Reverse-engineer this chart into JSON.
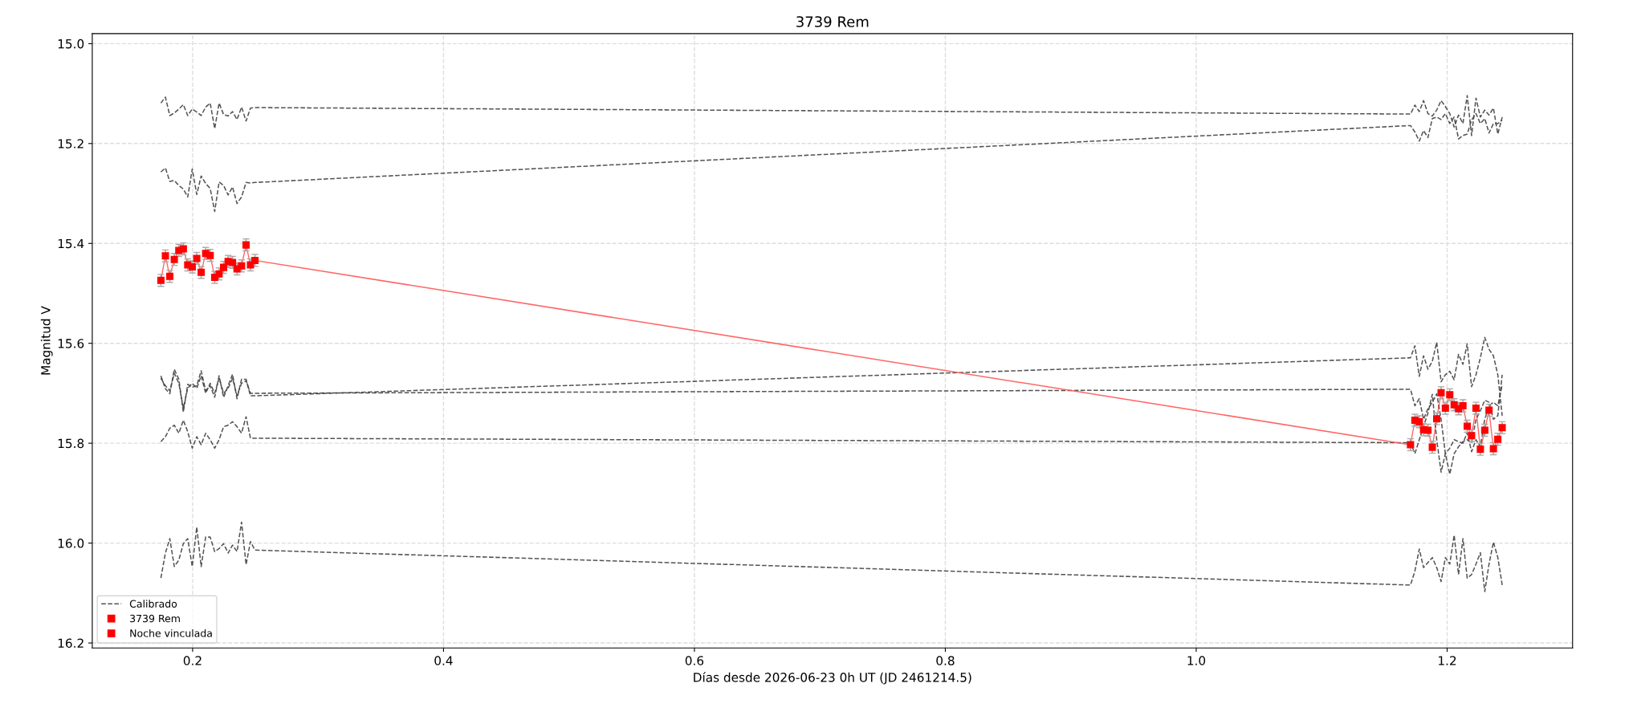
{
  "chart_data": {
    "type": "line",
    "title": "3739 Rem",
    "xlabel": "Días desde 2026-06-23 0h UT (JD 2461214.5)",
    "ylabel": "Magnitud V",
    "x": [
      0.1747,
      0.1783,
      0.1818,
      0.1854,
      0.189,
      0.1926,
      0.1961,
      0.1997,
      0.2033,
      0.2068,
      0.2104,
      0.214,
      0.2176,
      0.2211,
      0.2247,
      0.2283,
      0.2318,
      0.2354,
      0.239,
      0.2426,
      0.2461,
      0.2497,
      1.1708,
      1.1743,
      1.1778,
      1.1812,
      1.1847,
      1.1882,
      1.1917,
      1.1952,
      1.1986,
      1.2021,
      1.2056,
      1.2091,
      1.2126,
      1.216,
      1.2195,
      1.223,
      1.2265,
      1.23,
      1.2334,
      1.2369,
      1.2404,
      1.2439
    ],
    "series": [
      {
        "name": "Calibrado",
        "type": "line",
        "color": "#404040",
        "line_style": "dashed",
        "marker": "none",
        "values": [
          15.119,
          15.107,
          15.144,
          15.139,
          15.131,
          15.122,
          15.144,
          15.131,
          15.137,
          15.144,
          15.127,
          15.119,
          15.17,
          15.119,
          15.142,
          15.145,
          15.136,
          15.152,
          15.127,
          15.155,
          15.129,
          15.128,
          15.141,
          15.123,
          15.136,
          15.114,
          15.14,
          15.145,
          15.133,
          15.114,
          15.126,
          15.14,
          15.167,
          15.143,
          15.16,
          15.104,
          15.184,
          15.109,
          15.147,
          15.133,
          15.143,
          15.129,
          15.181,
          15.147
        ]
      },
      {
        "type": "line",
        "color": "#404040",
        "line_style": "dashed",
        "marker": "none",
        "values": [
          15.257,
          15.249,
          15.276,
          15.274,
          15.284,
          15.291,
          15.307,
          15.251,
          15.302,
          15.265,
          15.28,
          15.29,
          15.336,
          15.277,
          15.284,
          15.303,
          15.287,
          15.32,
          15.307,
          15.278,
          15.279,
          15.278,
          15.164,
          15.177,
          15.195,
          15.174,
          15.188,
          15.15,
          15.147,
          15.152,
          15.14,
          15.16,
          15.147,
          15.191,
          15.184,
          15.181,
          15.153,
          15.14,
          15.16,
          15.15,
          15.179,
          15.16,
          15.16,
          15.153
        ]
      },
      {
        "type": "line",
        "color": "#404040",
        "line_style": "dashed",
        "marker": "none",
        "values": [
          15.665,
          15.691,
          15.701,
          15.652,
          15.672,
          15.738,
          15.682,
          15.688,
          15.685,
          15.655,
          15.695,
          15.685,
          15.708,
          15.665,
          15.708,
          15.685,
          15.662,
          15.711,
          15.672,
          15.672,
          15.705,
          15.705,
          15.629,
          15.605,
          15.666,
          15.625,
          15.652,
          15.636,
          15.598,
          15.677,
          15.663,
          15.656,
          15.673,
          15.622,
          15.642,
          15.601,
          15.687,
          15.663,
          15.629,
          15.588,
          15.612,
          15.625,
          15.663,
          15.745
        ]
      },
      {
        "type": "line",
        "color": "#404040",
        "line_style": "dashed",
        "marker": "none",
        "values": [
          15.67,
          15.685,
          15.695,
          15.66,
          15.68,
          15.73,
          15.69,
          15.68,
          15.69,
          15.665,
          15.7,
          15.68,
          15.7,
          15.67,
          15.7,
          15.69,
          15.67,
          15.705,
          15.68,
          15.675,
          15.7,
          15.7,
          15.692,
          15.725,
          15.711,
          15.752,
          15.731,
          15.718,
          15.701,
          15.752,
          15.821,
          15.862,
          15.821,
          15.807,
          15.797,
          15.793,
          15.8,
          15.752,
          15.735,
          15.714,
          15.718,
          15.752,
          15.745,
          15.663
        ]
      },
      {
        "type": "line",
        "color": "#404040",
        "line_style": "dashed",
        "marker": "none",
        "values": [
          15.797,
          15.787,
          15.77,
          15.764,
          15.78,
          15.754,
          15.777,
          15.81,
          15.787,
          15.803,
          15.78,
          15.793,
          15.81,
          15.793,
          15.767,
          15.764,
          15.757,
          15.767,
          15.78,
          15.747,
          15.79,
          15.79,
          15.799,
          15.821,
          15.793,
          15.766,
          15.74,
          15.702,
          15.793,
          15.858,
          15.821,
          15.81,
          15.793,
          15.797,
          15.8,
          15.779,
          15.817,
          15.793,
          15.807,
          15.752,
          15.725,
          15.718,
          15.725,
          15.683
        ]
      },
      {
        "type": "line",
        "color": "#404040",
        "line_style": "dashed",
        "marker": "none",
        "values": [
          16.07,
          16.02,
          15.991,
          16.047,
          16.034,
          16.001,
          15.991,
          16.047,
          15.968,
          16.047,
          15.988,
          15.988,
          16.017,
          16.011,
          16.001,
          16.02,
          16.004,
          16.017,
          15.958,
          16.043,
          15.997,
          16.014,
          16.084,
          16.056,
          16.012,
          16.049,
          16.039,
          16.029,
          16.049,
          16.077,
          16.029,
          16.042,
          15.984,
          16.063,
          15.991,
          16.07,
          16.063,
          16.042,
          16.019,
          16.097,
          16.042,
          15.998,
          16.029,
          16.084
        ]
      },
      {
        "type": "line",
        "color": "#ff5555",
        "line_style": "solid",
        "marker": "none",
        "x": [
          0.2497,
          1.1708
        ],
        "values": [
          15.434,
          15.803
        ]
      },
      {
        "name": "3739 Rem",
        "type": "line",
        "color": "#ff0000",
        "line_style": "solid",
        "marker": "square",
        "x": [
          0.1747,
          0.1783,
          0.1818,
          0.1854,
          0.189,
          0.1926,
          0.1961,
          0.1997,
          0.2033,
          0.2068,
          0.2104,
          0.214,
          0.2176,
          0.2211,
          0.2247,
          0.2283,
          0.2318,
          0.2354,
          0.239,
          0.2426,
          0.2461,
          0.2497
        ],
        "values": [
          15.474,
          15.425,
          15.466,
          15.432,
          15.414,
          15.411,
          15.443,
          15.447,
          15.43,
          15.458,
          15.42,
          15.424,
          15.468,
          15.461,
          15.448,
          15.436,
          15.438,
          15.451,
          15.445,
          15.403,
          15.443,
          15.434
        ],
        "errors": [
          0.012,
          0.012,
          0.012,
          0.012,
          0.012,
          0.012,
          0.012,
          0.012,
          0.012,
          0.012,
          0.012,
          0.012,
          0.012,
          0.012,
          0.012,
          0.012,
          0.012,
          0.012,
          0.012,
          0.012,
          0.012,
          0.012
        ]
      },
      {
        "name": "Noche vinculada",
        "type": "line",
        "color": "#ff0000",
        "line_style": "solid",
        "marker": "square",
        "x": [
          1.1708,
          1.1743,
          1.1778,
          1.1812,
          1.1847,
          1.1882,
          1.1917,
          1.1952,
          1.1986,
          1.2021,
          1.2056,
          1.2091,
          1.2126,
          1.216,
          1.2195,
          1.223,
          1.2265,
          1.23,
          1.2334,
          1.2369,
          1.2404,
          1.2439
        ],
        "values": [
          15.803,
          15.754,
          15.757,
          15.773,
          15.774,
          15.808,
          15.751,
          15.699,
          15.73,
          15.703,
          15.723,
          15.731,
          15.725,
          15.766,
          15.785,
          15.73,
          15.812,
          15.774,
          15.734,
          15.811,
          15.792,
          15.769
        ],
        "errors": [
          0.012,
          0.012,
          0.012,
          0.012,
          0.012,
          0.012,
          0.012,
          0.012,
          0.012,
          0.012,
          0.012,
          0.012,
          0.012,
          0.012,
          0.012,
          0.012,
          0.012,
          0.012,
          0.012,
          0.012,
          0.012,
          0.012
        ]
      }
    ],
    "xlim": [
      0.12,
      1.3
    ],
    "xticks": [
      0.2,
      0.4,
      0.6,
      0.8,
      {
        "value": 1,
        "label": "1.0"
      },
      1.2
    ],
    "ylim": [
      16.21,
      14.98
    ],
    "yticks": [
      {
        "value": 15,
        "label": "15.0"
      },
      15.2,
      15.4,
      15.6,
      15.8,
      {
        "value": 16,
        "label": "16.0"
      },
      16.2
    ],
    "grid": true,
    "legend": "bottom left"
  }
}
